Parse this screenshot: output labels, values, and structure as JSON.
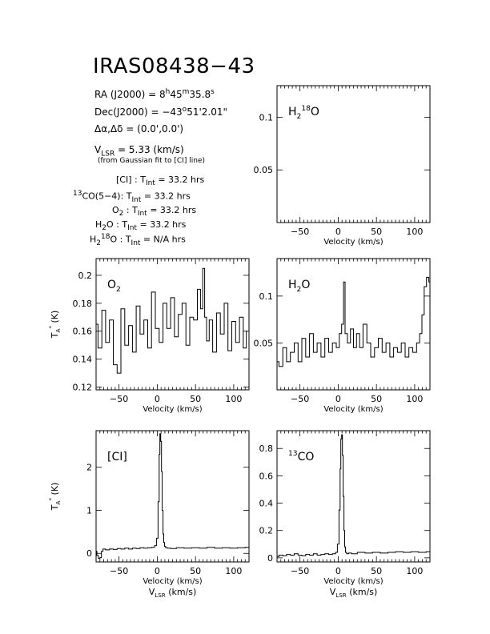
{
  "header": {
    "title": "IRAS08438−43",
    "ra": "RA (J2000) = 8h45m35.8s",
    "dec": "Dec(J2000) = −43°51'2.01\"",
    "offset": "Δα,Δδ = (0.0',0.0')",
    "vlsr": "VLSR = 5.33 (km/s)",
    "vlsr_note": "(from Gaussian fit to [CI] line)",
    "lines": [
      "[CI] : TInt = 33.2 hrs",
      "13CO(5−4): TInt = 33.2 hrs",
      "O2 : TInt = 33.2 hrs",
      "H2O : TInt = 33.2 hrs",
      "H2 18O : TInt = N/A hrs"
    ]
  },
  "chart_data": [
    {
      "type": "line",
      "id": "h218o",
      "label": "H2 18O",
      "xlabel": "Velocity (km/s)",
      "ylabel": "",
      "xlim": [
        -80,
        120
      ],
      "ylim": [
        0,
        0.13
      ],
      "xticks": [
        -50,
        0,
        50,
        100
      ],
      "yticks": [
        0.05,
        0.1
      ],
      "ytick_labels": [
        "0.05",
        "0.1"
      ],
      "series": []
    },
    {
      "type": "line",
      "id": "o2",
      "label": "O2",
      "xlabel": "Velocity (km/s)",
      "ylabel": "TA* (K)",
      "xlim": [
        -80,
        120
      ],
      "ylim": [
        0.118,
        0.212
      ],
      "xticks": [
        -50,
        0,
        50,
        100
      ],
      "yticks": [
        0.12,
        0.14,
        0.16,
        0.18,
        0.2
      ],
      "ytick_labels": [
        "0.12",
        "0.14",
        "0.16",
        "0.18",
        "0.2"
      ],
      "series": [
        {
          "x": [
            -80,
            -75,
            -70,
            -65,
            -60,
            -55,
            -50,
            -45,
            -40,
            -35,
            -30,
            -25,
            -20,
            -15,
            -10,
            -5,
            0,
            5,
            10,
            15,
            20,
            25,
            30,
            35,
            40,
            45,
            50,
            55,
            58,
            61,
            63,
            66,
            70,
            75,
            80,
            85,
            90,
            95,
            100,
            105,
            110,
            115,
            118
          ],
          "y": [
            0.165,
            0.148,
            0.175,
            0.152,
            0.168,
            0.136,
            0.13,
            0.176,
            0.15,
            0.164,
            0.145,
            0.178,
            0.158,
            0.168,
            0.148,
            0.188,
            0.162,
            0.152,
            0.18,
            0.162,
            0.184,
            0.156,
            0.172,
            0.18,
            0.15,
            0.17,
            0.168,
            0.19,
            0.176,
            0.205,
            0.17,
            0.153,
            0.168,
            0.145,
            0.173,
            0.158,
            0.18,
            0.146,
            0.167,
            0.152,
            0.17,
            0.148,
            0.16
          ]
        }
      ]
    },
    {
      "type": "line",
      "id": "h2o",
      "label": "H2O",
      "xlabel": "Velocity (km/s)",
      "ylabel": "",
      "xlim": [
        -80,
        120
      ],
      "ylim": [
        0,
        0.14
      ],
      "xticks": [
        -50,
        0,
        50,
        100
      ],
      "yticks": [
        0.05,
        0.1
      ],
      "ytick_labels": [
        "0.05",
        "0.1"
      ],
      "series": [
        {
          "x": [
            -80,
            -75,
            -70,
            -65,
            -60,
            -55,
            -50,
            -45,
            -40,
            -35,
            -30,
            -25,
            -20,
            -15,
            -10,
            -5,
            0,
            3,
            6,
            8,
            10,
            14,
            18,
            22,
            26,
            30,
            35,
            40,
            45,
            50,
            55,
            60,
            65,
            70,
            75,
            80,
            85,
            90,
            95,
            100,
            105,
            108,
            111,
            114,
            117,
            120
          ],
          "y": [
            0.03,
            0.025,
            0.045,
            0.03,
            0.04,
            0.05,
            0.03,
            0.055,
            0.035,
            0.06,
            0.04,
            0.05,
            0.035,
            0.055,
            0.04,
            0.05,
            0.045,
            0.06,
            0.07,
            0.115,
            0.06,
            0.05,
            0.065,
            0.045,
            0.06,
            0.045,
            0.07,
            0.05,
            0.035,
            0.045,
            0.055,
            0.04,
            0.05,
            0.035,
            0.045,
            0.04,
            0.05,
            0.035,
            0.045,
            0.04,
            0.05,
            0.06,
            0.08,
            0.11,
            0.12,
            0.115
          ]
        }
      ]
    },
    {
      "type": "line",
      "id": "ci",
      "label": "[CI]",
      "xlabel": "Velocity (km/s)",
      "ylabel": "TA* (K)",
      "xlabel2": "VLSR (km/s)",
      "xlim": [
        -80,
        120
      ],
      "ylim": [
        -0.2,
        2.85
      ],
      "xticks": [
        -50,
        0,
        50,
        100
      ],
      "yticks": [
        0,
        1,
        2
      ],
      "ytick_labels": [
        "0",
        "1",
        "2"
      ],
      "series": [
        {
          "x": [
            -80,
            -78,
            -76,
            -74,
            -72,
            -70,
            -65,
            -60,
            -55,
            -50,
            -45,
            -40,
            -35,
            -30,
            -25,
            -20,
            -15,
            -10,
            -5,
            -2,
            0,
            2,
            3,
            4,
            5,
            6,
            7,
            8,
            9,
            10,
            12,
            15,
            20,
            30,
            40,
            50,
            60,
            70,
            80,
            90,
            100,
            110,
            120
          ],
          "y": [
            0.05,
            -0.05,
            -0.12,
            -0.1,
            0.05,
            0.1,
            0.08,
            0.1,
            0.09,
            0.11,
            0.1,
            0.12,
            0.1,
            0.12,
            0.11,
            0.13,
            0.12,
            0.13,
            0.14,
            0.18,
            0.35,
            1.2,
            2.3,
            2.78,
            2.6,
            1.9,
            1.0,
            0.45,
            0.25,
            0.16,
            0.13,
            0.12,
            0.11,
            0.13,
            0.12,
            0.13,
            0.12,
            0.14,
            0.12,
            0.13,
            0.12,
            0.13,
            0.14
          ]
        }
      ]
    },
    {
      "type": "line",
      "id": "13co",
      "label": "13CO",
      "xlabel": "Velocity (km/s)",
      "ylabel": "",
      "xlabel2": "VLSR (km/s)",
      "xlim": [
        -80,
        120
      ],
      "ylim": [
        -0.03,
        0.93
      ],
      "xticks": [
        -50,
        0,
        50,
        100
      ],
      "yticks": [
        0,
        0.2,
        0.4,
        0.6,
        0.8
      ],
      "ytick_labels": [
        "0",
        "0.2",
        "0.4",
        "0.6",
        "0.8"
      ],
      "series": [
        {
          "x": [
            -80,
            -75,
            -70,
            -65,
            -60,
            -55,
            -50,
            -45,
            -40,
            -35,
            -30,
            -25,
            -20,
            -15,
            -10,
            -5,
            -2,
            0,
            2,
            3,
            4,
            5,
            6,
            7,
            8,
            9,
            10,
            12,
            15,
            20,
            30,
            40,
            50,
            60,
            70,
            80,
            90,
            100,
            110,
            120
          ],
          "y": [
            0.01,
            0.02,
            0.015,
            0.025,
            0.02,
            0.03,
            0.02,
            0.015,
            0.025,
            0.02,
            0.03,
            0.02,
            0.025,
            0.03,
            0.025,
            0.03,
            0.04,
            0.1,
            0.35,
            0.65,
            0.87,
            0.9,
            0.75,
            0.45,
            0.2,
            0.08,
            0.04,
            0.03,
            0.035,
            0.03,
            0.04,
            0.035,
            0.04,
            0.035,
            0.04,
            0.045,
            0.04,
            0.045,
            0.04,
            0.045
          ]
        }
      ]
    }
  ]
}
